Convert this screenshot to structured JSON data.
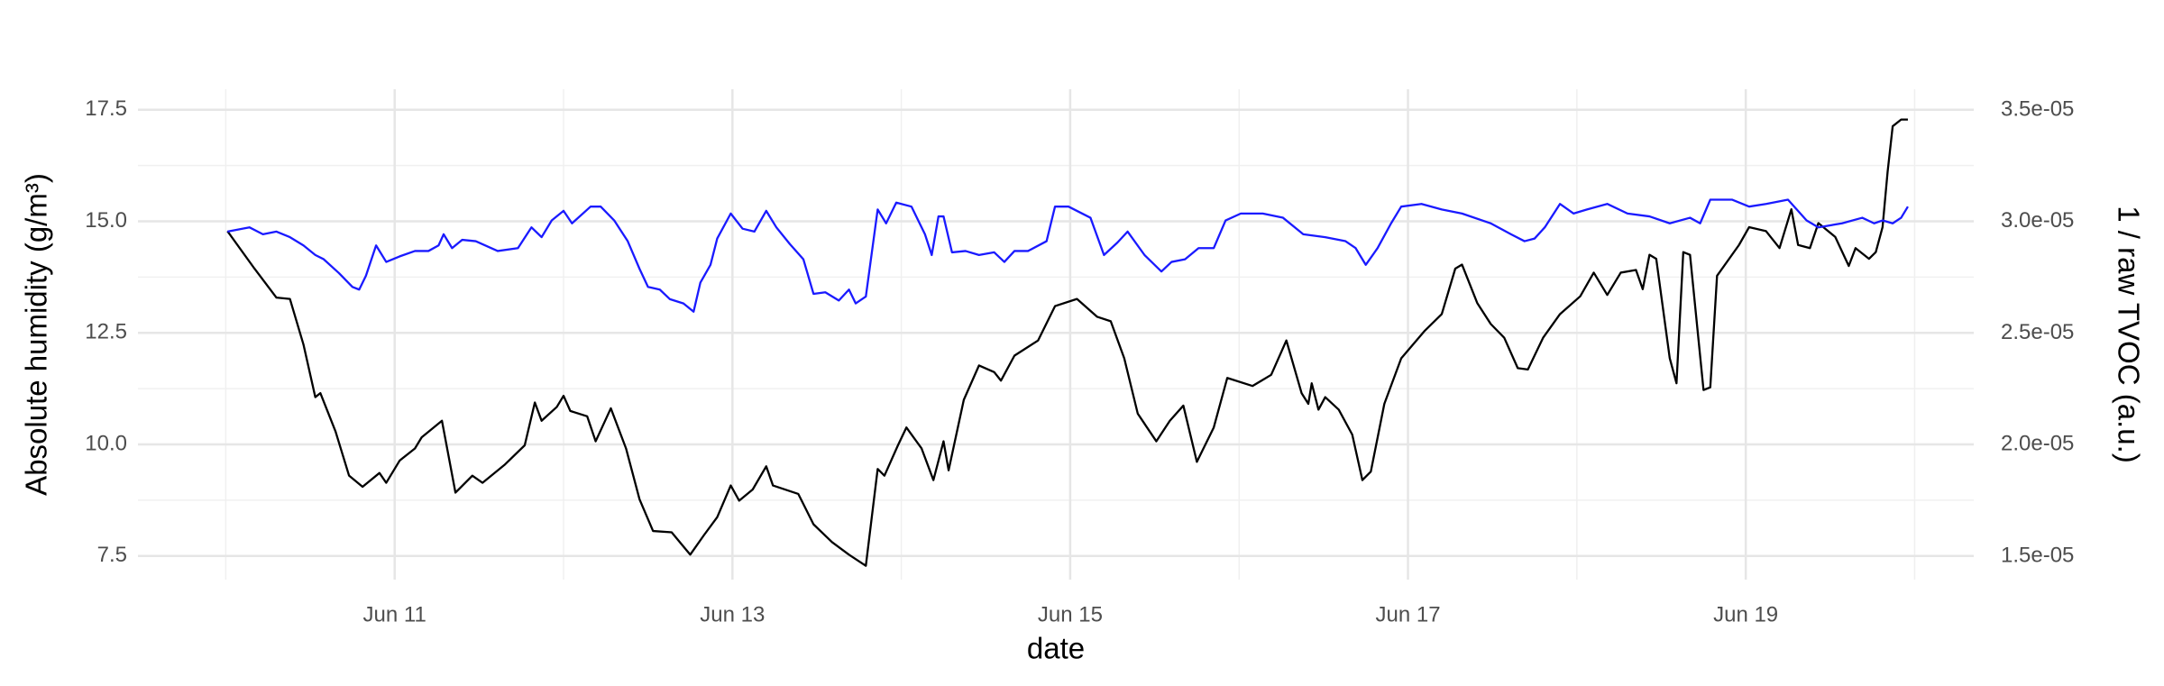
{
  "chart_data": {
    "type": "line",
    "xlabel": "date",
    "ylabel": "Absolute humidity (g/m³)",
    "y2label": "1 / raw TVOC  (a.u.)",
    "y2label_color": "#1a1aff",
    "xlim": [
      9.48,
      20.35
    ],
    "xticks": [
      {
        "value": 11,
        "label": "Jun 11"
      },
      {
        "value": 13,
        "label": "Jun 13"
      },
      {
        "value": 15,
        "label": "Jun 15"
      },
      {
        "value": 17,
        "label": "Jun 17"
      },
      {
        "value": 19,
        "label": "Jun 19"
      }
    ],
    "ylim": [
      6.97,
      17.96
    ],
    "yticks": [
      7.5,
      {
        "value": 10,
        "label": "10.0"
      },
      12.5,
      {
        "value": 15,
        "label": "15.0"
      },
      17.5
    ],
    "y2lim": [
      1.395e-05,
      3.593e-05
    ],
    "y2ticks": [
      {
        "value": 1.5e-05,
        "label": "1.5e-05"
      },
      {
        "value": 2e-05,
        "label": "2.0e-05"
      },
      {
        "value": 2.5e-05,
        "label": "2.5e-05"
      },
      {
        "value": 3e-05,
        "label": "3.0e-05"
      },
      {
        "value": 3.5e-05,
        "label": "3.5e-05"
      }
    ],
    "grid": true,
    "series": [
      {
        "color": "#000000",
        "axis": "y",
        "x": [
          10.01,
          10.17,
          10.3,
          10.38,
          10.46,
          10.53,
          10.56,
          10.65,
          10.73,
          10.81,
          10.91,
          10.95,
          11.03,
          11.12,
          11.16,
          11.28,
          11.36,
          11.46,
          11.52,
          11.65,
          11.77,
          11.83,
          11.87,
          11.96,
          12.0,
          12.04,
          12.14,
          12.19,
          12.28,
          12.37,
          12.45,
          12.53,
          12.64,
          12.75,
          12.83,
          12.91,
          12.99,
          13.04,
          13.12,
          13.2,
          13.24,
          13.39,
          13.48,
          13.59,
          13.69,
          13.79,
          13.86,
          13.9,
          13.98,
          14.03,
          14.12,
          14.19,
          14.25,
          14.28,
          14.37,
          14.46,
          14.55,
          14.59,
          14.67,
          14.81,
          14.91,
          15.04,
          15.16,
          15.24,
          15.32,
          15.4,
          15.51,
          15.59,
          15.67,
          15.75,
          15.85,
          15.93,
          16.08,
          16.19,
          16.28,
          16.37,
          16.41,
          16.43,
          16.47,
          16.51,
          16.59,
          16.67,
          16.73,
          16.78,
          16.86,
          16.96,
          17.1,
          17.2,
          17.28,
          17.32,
          17.41,
          17.49,
          17.57,
          17.65,
          17.71,
          17.8,
          17.9,
          18.02,
          18.1,
          18.18,
          18.26,
          18.35,
          18.39,
          18.43,
          18.47,
          18.55,
          18.59,
          18.63,
          18.67,
          18.75,
          18.79,
          18.83,
          18.96,
          19.02,
          19.12,
          19.2,
          19.27,
          19.31,
          19.38,
          19.43,
          19.53,
          19.61,
          19.65,
          19.73,
          19.77,
          19.81,
          19.84,
          19.87,
          19.92,
          19.96
        ],
        "values": [
          14.78,
          13.94,
          13.29,
          13.26,
          12.24,
          11.06,
          11.15,
          10.29,
          9.3,
          9.05,
          9.36,
          9.14,
          9.64,
          9.91,
          10.16,
          10.53,
          8.92,
          9.3,
          9.14,
          9.54,
          9.98,
          10.94,
          10.53,
          10.84,
          11.09,
          10.75,
          10.63,
          10.07,
          10.81,
          9.91,
          8.77,
          8.06,
          8.03,
          7.53,
          7.96,
          8.37,
          9.08,
          8.74,
          8.99,
          9.51,
          9.08,
          8.89,
          8.21,
          7.81,
          7.53,
          7.28,
          9.45,
          9.3,
          9.98,
          10.38,
          9.91,
          9.2,
          10.07,
          9.42,
          11.0,
          11.77,
          11.62,
          11.43,
          11.99,
          12.33,
          13.1,
          13.26,
          12.86,
          12.76,
          11.93,
          10.69,
          10.07,
          10.53,
          10.87,
          9.61,
          10.38,
          11.49,
          11.31,
          11.56,
          12.33,
          11.15,
          10.91,
          11.37,
          10.78,
          11.06,
          10.78,
          10.22,
          9.2,
          9.39,
          10.91,
          11.93,
          12.55,
          12.92,
          13.94,
          14.03,
          13.17,
          12.7,
          12.39,
          11.71,
          11.68,
          12.39,
          12.92,
          13.32,
          13.85,
          13.35,
          13.85,
          13.91,
          13.48,
          14.25,
          14.16,
          11.93,
          11.37,
          14.31,
          14.25,
          11.22,
          11.28,
          13.78,
          14.47,
          14.87,
          14.78,
          14.4,
          15.27,
          14.47,
          14.4,
          14.96,
          14.65,
          14.0,
          14.4,
          14.16,
          14.31,
          14.87,
          16.11,
          17.13,
          17.28,
          17.28
        ]
      },
      {
        "color": "#1a1aff",
        "axis": "y2",
        "x": [
          10.01,
          10.14,
          10.22,
          10.3,
          10.38,
          10.46,
          10.53,
          10.58,
          10.67,
          10.75,
          10.79,
          10.83,
          10.89,
          10.95,
          11.03,
          11.12,
          11.2,
          11.26,
          11.29,
          11.34,
          11.4,
          11.48,
          11.61,
          11.73,
          11.81,
          11.87,
          11.93,
          12.0,
          12.05,
          12.16,
          12.22,
          12.3,
          12.38,
          12.45,
          12.5,
          12.57,
          12.63,
          12.71,
          12.77,
          12.81,
          12.87,
          12.91,
          12.99,
          13.06,
          13.13,
          13.2,
          13.26,
          13.34,
          13.42,
          13.48,
          13.55,
          13.63,
          13.69,
          13.73,
          13.79,
          13.86,
          13.91,
          13.97,
          14.06,
          14.14,
          14.18,
          14.22,
          14.25,
          14.3,
          14.38,
          14.46,
          14.55,
          14.61,
          14.67,
          14.75,
          14.86,
          14.91,
          14.99,
          15.12,
          15.2,
          15.28,
          15.34,
          15.44,
          15.54,
          15.6,
          15.68,
          15.76,
          15.85,
          15.92,
          16.01,
          16.14,
          16.26,
          16.38,
          16.51,
          16.63,
          16.69,
          16.75,
          16.82,
          16.9,
          16.96,
          17.08,
          17.2,
          17.32,
          17.49,
          17.61,
          17.69,
          17.75,
          17.81,
          17.9,
          17.98,
          18.06,
          18.18,
          18.3,
          18.43,
          18.55,
          18.67,
          18.73,
          18.79,
          18.92,
          19.02,
          19.12,
          19.25,
          19.36,
          19.43,
          19.57,
          19.69,
          19.76,
          19.81,
          19.87,
          19.92,
          19.96
        ],
        "values": [
          2.955e-05,
          2.974e-05,
          2.943e-05,
          2.955e-05,
          2.93e-05,
          2.893e-05,
          2.85e-05,
          2.831e-05,
          2.769e-05,
          2.707e-05,
          2.695e-05,
          2.757e-05,
          2.893e-05,
          2.819e-05,
          2.844e-05,
          2.868e-05,
          2.868e-05,
          2.893e-05,
          2.943e-05,
          2.881e-05,
          2.918e-05,
          2.912e-05,
          2.868e-05,
          2.881e-05,
          2.974e-05,
          2.93e-05,
          3.005e-05,
          3.048e-05,
          2.992e-05,
          3.067e-05,
          3.067e-05,
          3.005e-05,
          2.912e-05,
          2.788e-05,
          2.707e-05,
          2.695e-05,
          2.652e-05,
          2.633e-05,
          2.596e-05,
          2.726e-05,
          2.806e-05,
          2.924e-05,
          3.036e-05,
          2.968e-05,
          2.955e-05,
          3.048e-05,
          2.974e-05,
          2.899e-05,
          2.831e-05,
          2.676e-05,
          2.683e-05,
          2.646e-05,
          2.695e-05,
          2.633e-05,
          2.664e-05,
          3.054e-05,
          2.992e-05,
          3.085e-05,
          3.067e-05,
          2.943e-05,
          2.85e-05,
          3.023e-05,
          3.023e-05,
          2.862e-05,
          2.868e-05,
          2.85e-05,
          2.862e-05,
          2.819e-05,
          2.868e-05,
          2.868e-05,
          2.912e-05,
          3.067e-05,
          3.067e-05,
          3.017e-05,
          2.85e-05,
          2.906e-05,
          2.955e-05,
          2.85e-05,
          2.776e-05,
          2.819e-05,
          2.831e-05,
          2.881e-05,
          2.881e-05,
          3.005e-05,
          3.036e-05,
          3.036e-05,
          3.017e-05,
          2.943e-05,
          2.93e-05,
          2.912e-05,
          2.881e-05,
          2.806e-05,
          2.881e-05,
          2.992e-05,
          3.067e-05,
          3.079e-05,
          3.054e-05,
          3.036e-05,
          2.992e-05,
          2.943e-05,
          2.912e-05,
          2.924e-05,
          2.974e-05,
          3.079e-05,
          3.036e-05,
          3.054e-05,
          3.079e-05,
          3.036e-05,
          3.023e-05,
          2.992e-05,
          3.017e-05,
          2.992e-05,
          3.098e-05,
          3.098e-05,
          3.067e-05,
          3.079e-05,
          3.098e-05,
          3.005e-05,
          2.974e-05,
          2.992e-05,
          3.017e-05,
          2.992e-05,
          3.005e-05,
          2.992e-05,
          3.017e-05,
          3.067e-05
        ]
      }
    ]
  }
}
